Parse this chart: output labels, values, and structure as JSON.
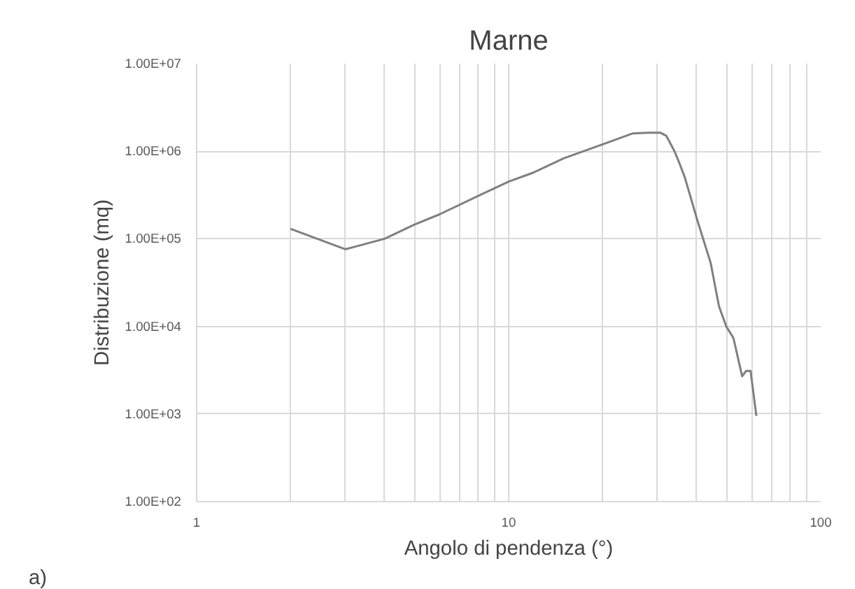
{
  "chart_data": {
    "type": "line",
    "title": "Marne",
    "xlabel": "Angolo di pendenza (°)",
    "ylabel": "Distribuzione (mq)",
    "x": [
      2,
      3,
      4,
      5,
      6,
      8,
      10,
      12,
      15,
      20,
      25,
      28,
      30.6,
      32,
      34,
      35.2,
      36.7,
      40.3,
      44.4,
      47.2,
      49.8,
      52.5,
      56,
      57.7,
      59.6,
      62.2
    ],
    "series": [
      {
        "color": "#7f7f7f",
        "values": [
          130000,
          76000,
          100000,
          146000,
          190000,
          310000,
          450000,
          570000,
          830000,
          1200000,
          1600000,
          1630000,
          1630000,
          1500000,
          1000000,
          740000,
          500000,
          160000,
          53000,
          17000,
          10000,
          7400,
          2700,
          3100,
          3100,
          950
        ]
      }
    ],
    "log": "xy",
    "xlim": [
      1,
      100
    ],
    "ylim": [
      100,
      10000000
    ],
    "xticks": [
      1,
      {
        "value": 2,
        "label": null
      },
      {
        "value": 3,
        "label": null
      },
      {
        "value": 4,
        "label": null
      },
      {
        "value": 5,
        "label": null
      },
      {
        "value": 6,
        "label": null
      },
      {
        "value": 7,
        "label": null
      },
      {
        "value": 8,
        "label": null
      },
      {
        "value": 9,
        "label": null
      },
      10,
      {
        "value": 20,
        "label": null
      },
      {
        "value": 30,
        "label": null
      },
      {
        "value": 40,
        "label": null
      },
      {
        "value": 50,
        "label": null
      },
      {
        "value": 60,
        "label": null
      },
      {
        "value": 70,
        "label": null
      },
      {
        "value": 80,
        "label": null
      },
      {
        "value": 90,
        "label": null
      },
      100
    ],
    "yticks": [
      {
        "value": 100,
        "label": "1.00E+02"
      },
      {
        "value": 1000,
        "label": "1.00E+03"
      },
      {
        "value": 10000,
        "label": "1.00E+04"
      },
      {
        "value": 100000,
        "label": "1.00E+05"
      },
      {
        "value": 1000000,
        "label": "1.00E+06"
      },
      {
        "value": 10000000,
        "label": "1.00E+07"
      }
    ],
    "grid": true,
    "marker": "none",
    "line_style": "solid",
    "annotations": [
      "a)"
    ]
  }
}
